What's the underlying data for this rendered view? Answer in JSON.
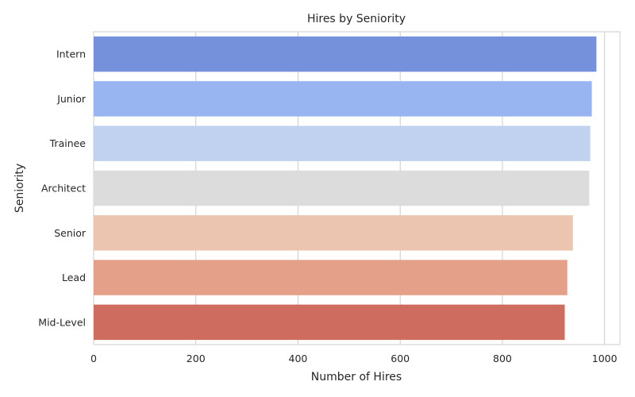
{
  "chart_data": {
    "type": "bar",
    "orientation": "horizontal",
    "title": "Hires by Seniority",
    "xlabel": "Number of Hires",
    "ylabel": "Seniority",
    "categories": [
      "Intern",
      "Junior",
      "Trainee",
      "Architect",
      "Senior",
      "Lead",
      "Mid-Level"
    ],
    "values": [
      984,
      975,
      972,
      970,
      938,
      927,
      922
    ],
    "colors": [
      "#7591dc",
      "#99b5f1",
      "#c0d2f0",
      "#dcdcdc",
      "#ecc5b1",
      "#e5a08a",
      "#cd6c5f"
    ],
    "xlim": [
      0,
      1030
    ],
    "xticks": [
      0,
      200,
      400,
      600,
      800,
      1000
    ],
    "grid": true
  }
}
